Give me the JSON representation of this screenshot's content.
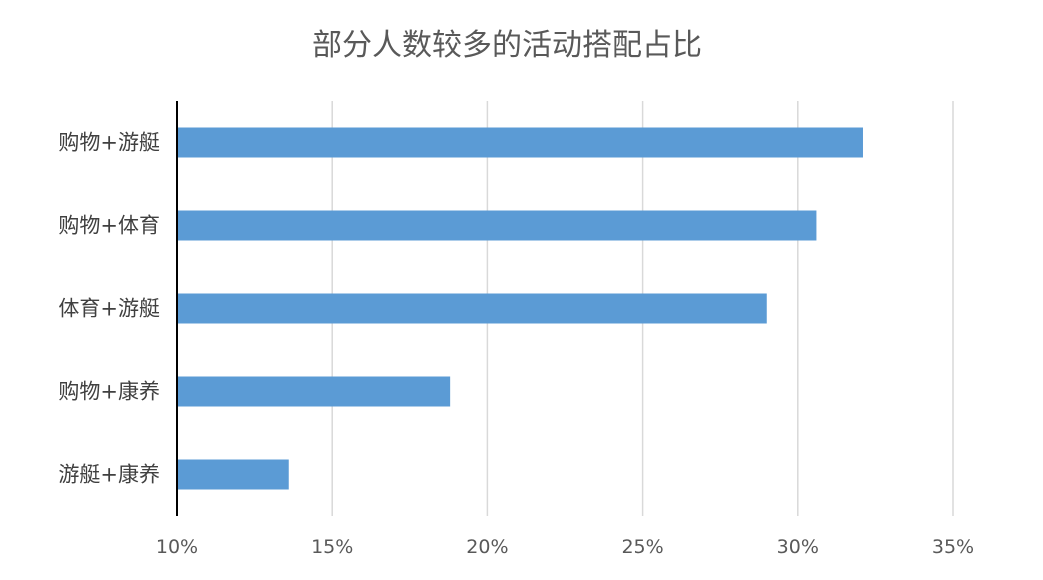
{
  "chart_data": {
    "type": "bar",
    "orientation": "horizontal",
    "title": "部分人数较多的活动搭配占比",
    "categories": [
      "购物+游艇",
      "购物+体育",
      "体育+游艇",
      "购物+康养",
      "游艇+康养"
    ],
    "values": [
      32.1,
      30.6,
      29.0,
      18.8,
      13.6
    ],
    "xlim": [
      10,
      35
    ],
    "xticks": [
      10,
      15,
      20,
      25,
      30,
      35
    ],
    "tick_labels": [
      "10%",
      "15%",
      "20%",
      "25%",
      "30%",
      "35%"
    ],
    "xlabel": "",
    "ylabel": "",
    "grid": true,
    "legend": "none",
    "bar_color": "#5B9BD5",
    "grid_color": "#D9D9D9",
    "axis_color": "#000000"
  }
}
